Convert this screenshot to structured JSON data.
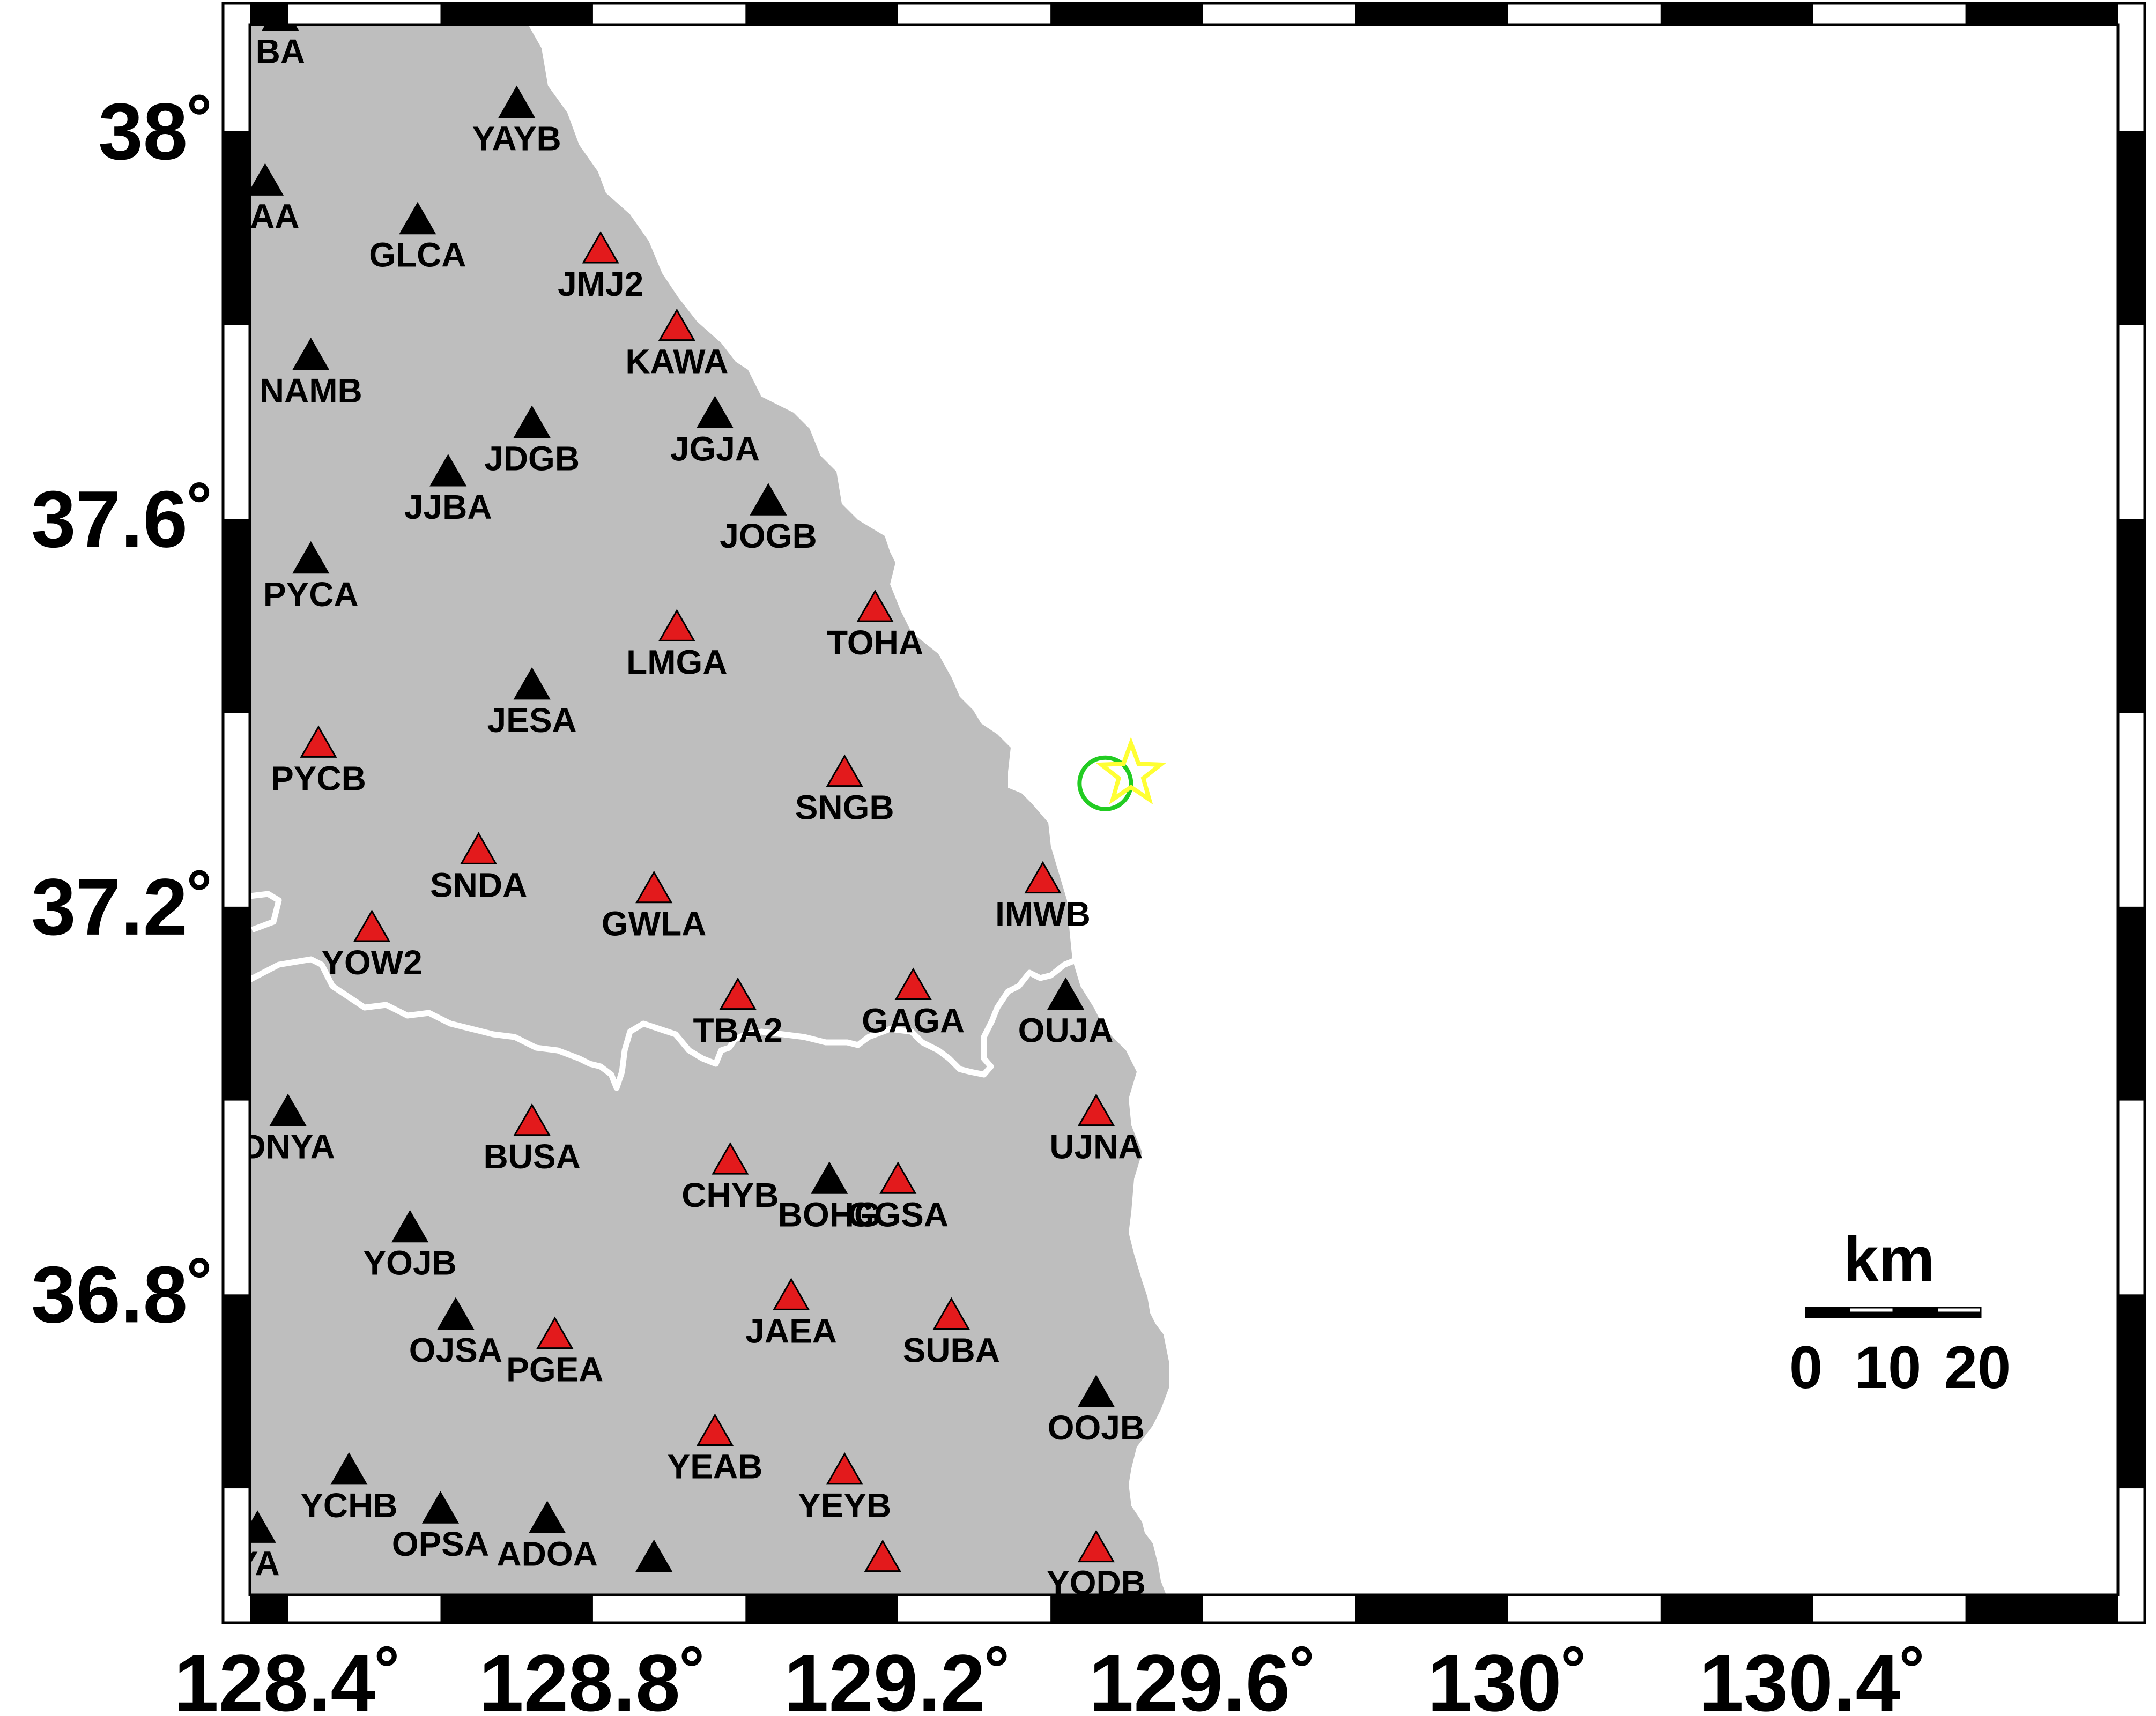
{
  "map": {
    "bounds": {
      "lon_min": 128.35,
      "lon_max": 130.8,
      "lat_min": 36.49,
      "lat_max": 38.11
    },
    "colors": {
      "land": "#bebebe",
      "sea": "#ffffff",
      "border": "#ffffff",
      "station_red": "#e31a1c",
      "station_black": "#000000",
      "epicenter_circle": "#22cc22",
      "epicenter_star": "#ffff33"
    },
    "x_ticks": [
      {
        "value": 128.4,
        "label": "128.4˚"
      },
      {
        "value": 128.8,
        "label": "128.8˚"
      },
      {
        "value": 129.2,
        "label": "129.2˚"
      },
      {
        "value": 129.6,
        "label": "129.6˚"
      },
      {
        "value": 130.0,
        "label": "130˚"
      },
      {
        "value": 130.4,
        "label": "130.4˚"
      }
    ],
    "y_ticks": [
      {
        "value": 38.0,
        "label": "38˚"
      },
      {
        "value": 37.6,
        "label": "37.6˚"
      },
      {
        "value": 37.2,
        "label": "37.2˚"
      },
      {
        "value": 36.8,
        "label": "36.8˚"
      }
    ],
    "scale_bar": {
      "unit": "km",
      "labels": [
        "0",
        "10",
        "20"
      ]
    },
    "epicenter": {
      "lon": 129.5,
      "lat": 37.33
    },
    "stations": [
      {
        "code": "YAYB",
        "lon": 128.7,
        "lat": 38.03,
        "color": "black"
      },
      {
        "code": "JAA",
        "lon": 128.37,
        "lat": 37.95,
        "color": "black"
      },
      {
        "code": "GLCA",
        "lon": 128.57,
        "lat": 37.91,
        "color": "black"
      },
      {
        "code": "JMJ2",
        "lon": 128.81,
        "lat": 37.88,
        "color": "red"
      },
      {
        "code": "KAWA",
        "lon": 128.91,
        "lat": 37.8,
        "color": "red"
      },
      {
        "code": "NAMB",
        "lon": 128.43,
        "lat": 37.77,
        "color": "black"
      },
      {
        "code": "JDGB",
        "lon": 128.72,
        "lat": 37.7,
        "color": "black"
      },
      {
        "code": "JGJA",
        "lon": 128.96,
        "lat": 37.71,
        "color": "black"
      },
      {
        "code": "JJBA",
        "lon": 128.61,
        "lat": 37.65,
        "color": "black"
      },
      {
        "code": "JOGB",
        "lon": 129.03,
        "lat": 37.62,
        "color": "black"
      },
      {
        "code": "PYCA",
        "lon": 128.43,
        "lat": 37.56,
        "color": "black"
      },
      {
        "code": "TOHA",
        "lon": 129.17,
        "lat": 37.51,
        "color": "red"
      },
      {
        "code": "LMGA",
        "lon": 128.91,
        "lat": 37.49,
        "color": "red"
      },
      {
        "code": "JESA",
        "lon": 128.72,
        "lat": 37.43,
        "color": "black"
      },
      {
        "code": "PYCB",
        "lon": 128.44,
        "lat": 37.37,
        "color": "red"
      },
      {
        "code": "SNGB",
        "lon": 129.13,
        "lat": 37.34,
        "color": "red"
      },
      {
        "code": "SNDA",
        "lon": 128.65,
        "lat": 37.26,
        "color": "red"
      },
      {
        "code": "GWLA",
        "lon": 128.88,
        "lat": 37.22,
        "color": "red"
      },
      {
        "code": "IMWB",
        "lon": 129.39,
        "lat": 37.23,
        "color": "red"
      },
      {
        "code": "YOW2",
        "lon": 128.51,
        "lat": 37.18,
        "color": "red"
      },
      {
        "code": "TBA2",
        "lon": 128.99,
        "lat": 37.11,
        "color": "red"
      },
      {
        "code": "GAGA",
        "lon": 129.22,
        "lat": 37.12,
        "color": "red"
      },
      {
        "code": "OUJA",
        "lon": 129.42,
        "lat": 37.11,
        "color": "black"
      },
      {
        "code": "DNYA",
        "lon": 128.4,
        "lat": 36.99,
        "color": "black"
      },
      {
        "code": "BUSA",
        "lon": 128.72,
        "lat": 36.98,
        "color": "red"
      },
      {
        "code": "UJNA",
        "lon": 129.46,
        "lat": 36.99,
        "color": "red"
      },
      {
        "code": "CHYB",
        "lon": 128.98,
        "lat": 36.94,
        "color": "red"
      },
      {
        "code": "BOHG",
        "lon": 129.11,
        "lat": 36.92,
        "color": "black"
      },
      {
        "code": "GGSA",
        "lon": 129.2,
        "lat": 36.92,
        "color": "red"
      },
      {
        "code": "YOJB",
        "lon": 128.56,
        "lat": 36.87,
        "color": "black"
      },
      {
        "code": "JAEA",
        "lon": 129.06,
        "lat": 36.8,
        "color": "red"
      },
      {
        "code": "OJSA",
        "lon": 128.62,
        "lat": 36.78,
        "color": "black"
      },
      {
        "code": "SUBA",
        "lon": 129.27,
        "lat": 36.78,
        "color": "red"
      },
      {
        "code": "PGEA",
        "lon": 128.75,
        "lat": 36.76,
        "color": "red"
      },
      {
        "code": "OOJB",
        "lon": 129.46,
        "lat": 36.7,
        "color": "black"
      },
      {
        "code": "YEAB",
        "lon": 128.96,
        "lat": 36.66,
        "color": "red"
      },
      {
        "code": "YCHB",
        "lon": 128.48,
        "lat": 36.62,
        "color": "black"
      },
      {
        "code": "YEYB",
        "lon": 129.13,
        "lat": 36.62,
        "color": "red"
      },
      {
        "code": "OPSA",
        "lon": 128.6,
        "lat": 36.58,
        "color": "black"
      },
      {
        "code": "ADOA",
        "lon": 128.74,
        "lat": 36.57,
        "color": "black"
      },
      {
        "code": "YA",
        "lon": 128.36,
        "lat": 36.56,
        "color": "black"
      },
      {
        "code": "",
        "lon": 128.88,
        "lat": 36.53,
        "color": "black"
      },
      {
        "code": "",
        "lon": 129.18,
        "lat": 36.53,
        "color": "red"
      },
      {
        "code": "YODB",
        "lon": 129.46,
        "lat": 36.54,
        "color": "red"
      },
      {
        "code": "BA",
        "lon": 128.39,
        "lat": 38.12,
        "color": "black"
      }
    ]
  }
}
